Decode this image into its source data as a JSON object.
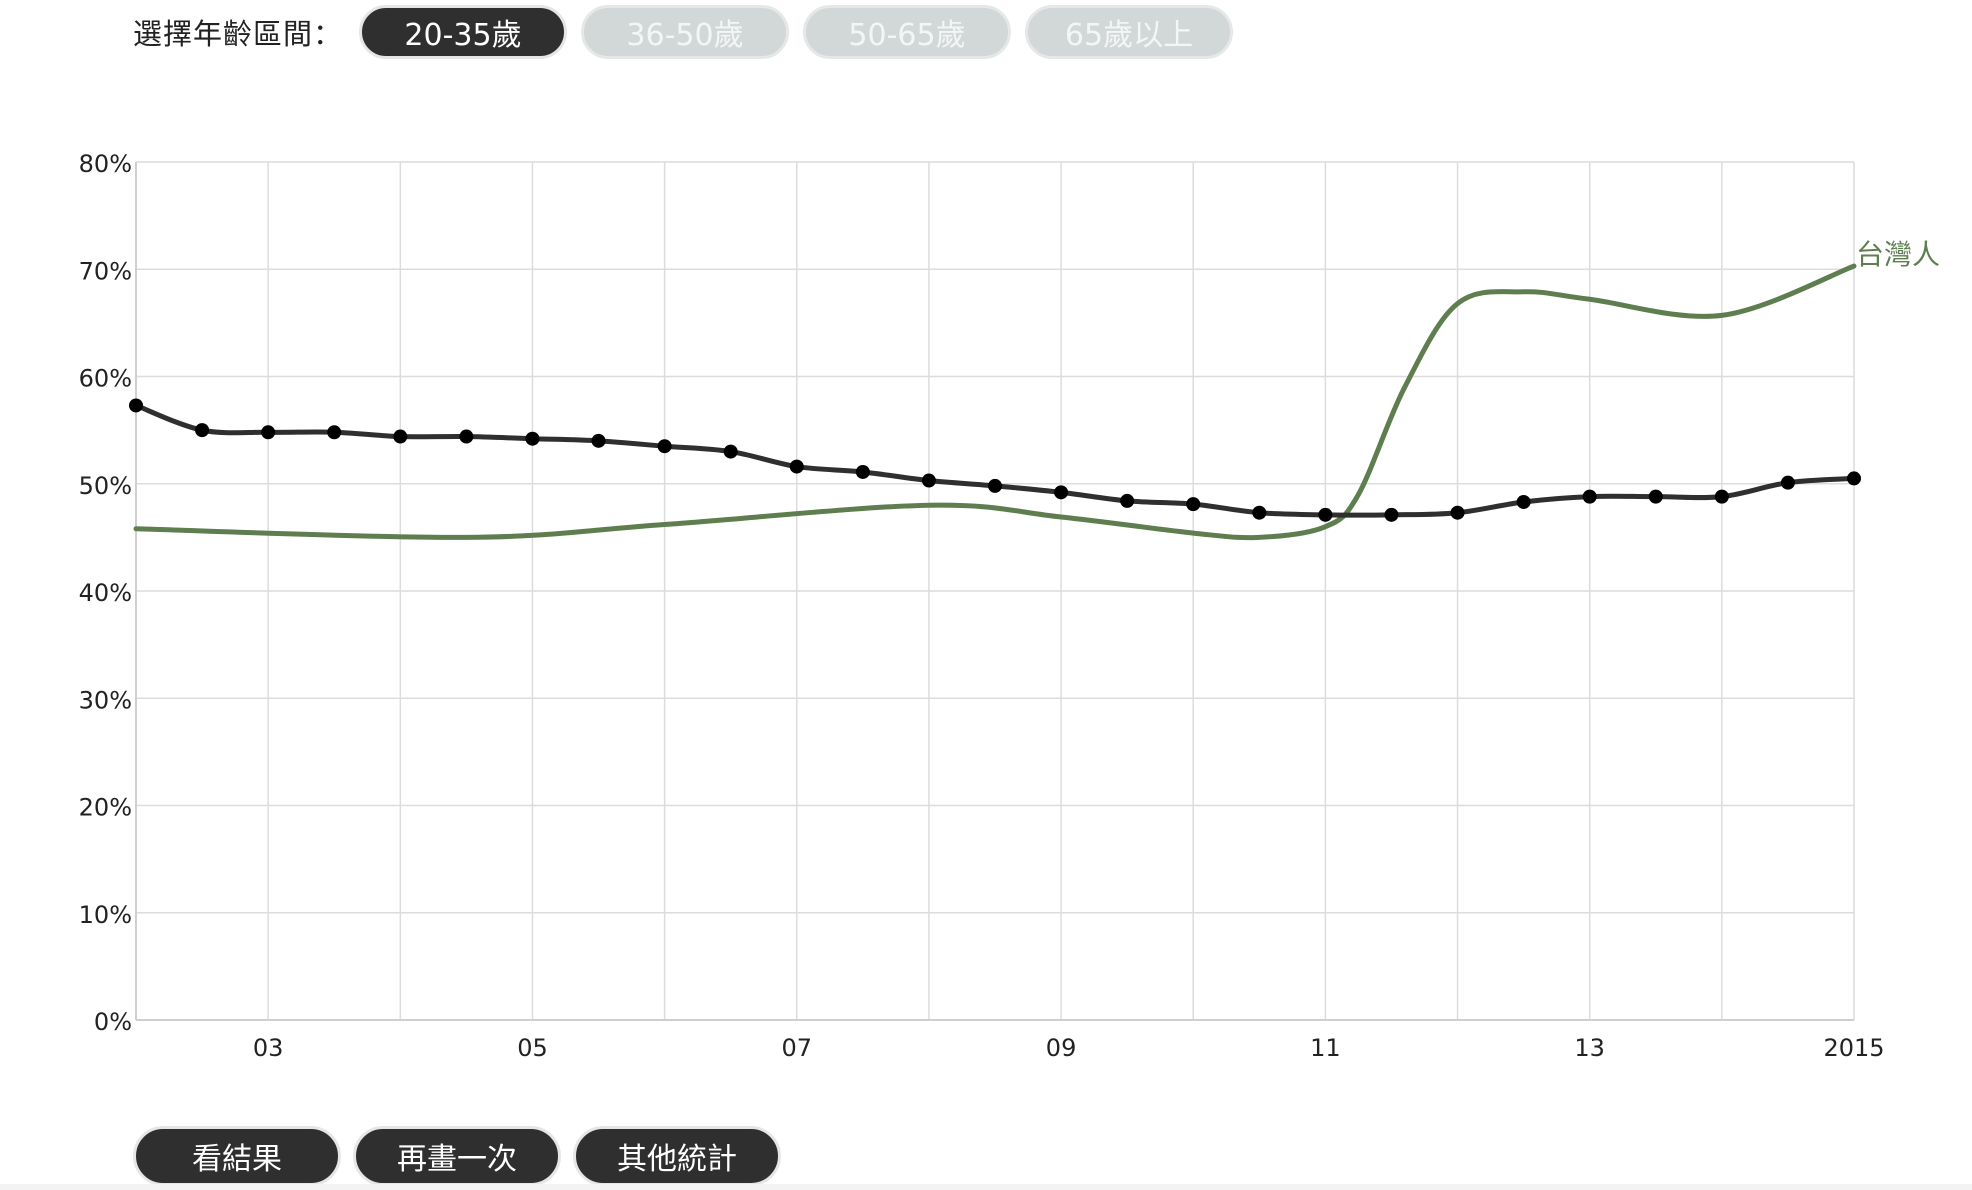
{
  "age_selector": {
    "label": "選擇年齡區間：",
    "options": [
      {
        "label": "20-35歲",
        "active": true
      },
      {
        "label": "36-50歲",
        "active": false
      },
      {
        "label": "50-65歲",
        "active": false
      },
      {
        "label": "65歲以上",
        "active": false
      }
    ]
  },
  "actions": {
    "view_result": "看結果",
    "redraw": "再畫一次",
    "other_stats": "其他統計"
  },
  "colors": {
    "user_line": "#2f2f2f",
    "taiwanese_line": "#5e7e4f",
    "grid": "#dcdcdc",
    "axis_text": "#222222"
  },
  "chart_data": {
    "type": "line",
    "title": "",
    "xlabel": "",
    "ylabel": "",
    "xlim": [
      2002,
      2015
    ],
    "ylim": [
      0,
      80
    ],
    "x_ticks": [
      {
        "value": 2003,
        "label": "03"
      },
      {
        "value": 2005,
        "label": "05"
      },
      {
        "value": 2007,
        "label": "07"
      },
      {
        "value": 2009,
        "label": "09"
      },
      {
        "value": 2011,
        "label": "11"
      },
      {
        "value": 2013,
        "label": "13"
      },
      {
        "value": 2015,
        "label": "2015"
      }
    ],
    "y_ticks": [
      {
        "value": 0,
        "label": "0%"
      },
      {
        "value": 10,
        "label": "10%"
      },
      {
        "value": 20,
        "label": "20%"
      },
      {
        "value": 30,
        "label": "30%"
      },
      {
        "value": 40,
        "label": "40%"
      },
      {
        "value": 50,
        "label": "50%"
      },
      {
        "value": 60,
        "label": "60%"
      },
      {
        "value": 70,
        "label": "70%"
      },
      {
        "value": 80,
        "label": "80%"
      }
    ],
    "grid": true,
    "series": [
      {
        "id": "user_drawn",
        "markers": true,
        "x": [
          2002,
          2002.5,
          2003,
          2003.5,
          2004,
          2004.5,
          2005,
          2005.5,
          2006,
          2006.5,
          2007,
          2007.5,
          2008,
          2008.5,
          2009,
          2009.5,
          2010,
          2010.5,
          2011,
          2011.5,
          2012,
          2012.5,
          2013,
          2013.5,
          2014,
          2014.5,
          2015
        ],
        "values": [
          57.3,
          55.0,
          54.8,
          54.8,
          54.4,
          54.4,
          54.2,
          54.0,
          53.5,
          53.0,
          51.6,
          51.1,
          50.3,
          49.8,
          49.2,
          48.4,
          48.1,
          47.3,
          47.1,
          47.1,
          47.3,
          48.3,
          48.8,
          48.8,
          48.8,
          50.1,
          50.5
        ]
      },
      {
        "name": "台灣人",
        "markers": false,
        "x": [
          2002,
          2004.5,
          2006,
          2008,
          2009,
          2010,
          2010.5,
          2011,
          2011.25,
          2011.6,
          2012,
          2012.5,
          2013,
          2014,
          2015
        ],
        "values": [
          45.8,
          45.0,
          46.2,
          48.0,
          46.9,
          45.4,
          45.0,
          46.0,
          49.0,
          59.0,
          66.8,
          67.9,
          67.2,
          65.7,
          70.3
        ]
      }
    ]
  }
}
